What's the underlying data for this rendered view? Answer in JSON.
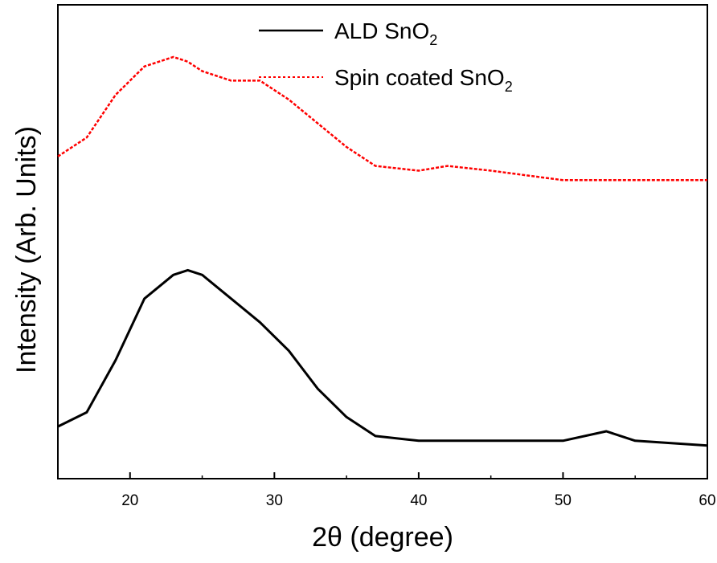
{
  "chart_data": {
    "type": "line",
    "xlabel": "2θ (degree)",
    "ylabel": "Intensity (Arb. Units)",
    "xlim": [
      15,
      60
    ],
    "ylim": [
      0,
      100
    ],
    "y_ticks_labeled": false,
    "x_ticks": [
      20,
      30,
      40,
      50,
      60
    ],
    "x_tick_labels": [
      "20",
      "30",
      "40",
      "50",
      "60"
    ],
    "grid": false,
    "legend_position": "top-center",
    "legend": [
      {
        "base": "ALD SnO",
        "subscript": "2"
      },
      {
        "base": "Spin coated SnO",
        "subscript": "2"
      }
    ],
    "series": [
      {
        "name": "ALD SnO2",
        "color": "#000000",
        "line_style": "solid",
        "x": [
          15,
          17,
          19,
          21,
          23,
          24,
          25,
          27,
          29,
          31,
          33,
          35,
          37,
          40,
          45,
          50,
          53,
          55,
          60
        ],
        "y": [
          11,
          14,
          25,
          38,
          43,
          44,
          43,
          38,
          33,
          27,
          19,
          13,
          9,
          8,
          8,
          8,
          10,
          8,
          7
        ]
      },
      {
        "name": "Spin coated SnO2",
        "color": "#ff0000",
        "line_style": "dotted",
        "x": [
          15,
          17,
          19,
          21,
          22,
          23,
          24,
          25,
          27,
          29,
          31,
          33,
          35,
          37,
          40,
          42,
          45,
          50,
          55,
          60
        ],
        "y": [
          68,
          72,
          81,
          87,
          88,
          89,
          88,
          86,
          84,
          84,
          80,
          75,
          70,
          66,
          65,
          66,
          65,
          63,
          63,
          63
        ]
      }
    ]
  }
}
